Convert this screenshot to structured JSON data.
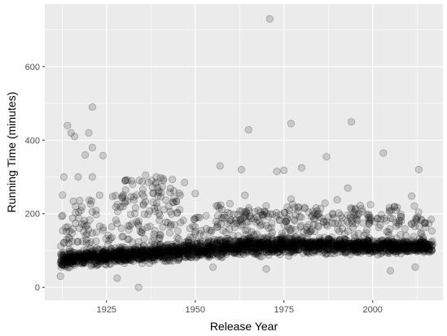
{
  "chart_data": {
    "type": "scatter",
    "title": "",
    "xlabel": "Release Year",
    "ylabel": "Running Time (minutes)",
    "xlim": [
      1907.6,
      2019.8
    ],
    "ylim": [
      -35,
      770
    ],
    "x_ticks": [
      1925,
      1950,
      1975,
      2000
    ],
    "y_ticks": [
      0,
      200,
      400,
      600
    ],
    "grid": true,
    "legend": "none",
    "point_color": "#000000",
    "point_opacity": 0.15,
    "panel_background": "#ebebeb",
    "trend_band": [
      {
        "year": 1912,
        "low": 40,
        "high": 110
      },
      {
        "year": 1925,
        "low": 55,
        "high": 115
      },
      {
        "year": 1940,
        "low": 60,
        "high": 125
      },
      {
        "year": 1955,
        "low": 70,
        "high": 140
      },
      {
        "year": 1965,
        "low": 78,
        "high": 150
      },
      {
        "year": 1980,
        "low": 82,
        "high": 145
      },
      {
        "year": 2000,
        "low": 85,
        "high": 140
      },
      {
        "year": 2017,
        "low": 85,
        "high": 135
      }
    ],
    "outliers": [
      {
        "x": 1971,
        "y": 730
      },
      {
        "x": 1921,
        "y": 490
      },
      {
        "x": 1994,
        "y": 450
      },
      {
        "x": 1977,
        "y": 445
      },
      {
        "x": 1914,
        "y": 440
      },
      {
        "x": 1965,
        "y": 428
      },
      {
        "x": 1915,
        "y": 420
      },
      {
        "x": 1920,
        "y": 420
      },
      {
        "x": 1916,
        "y": 410
      },
      {
        "x": 1921,
        "y": 380
      },
      {
        "x": 2003,
        "y": 365
      },
      {
        "x": 1919,
        "y": 360
      },
      {
        "x": 1924,
        "y": 358
      },
      {
        "x": 1987,
        "y": 355
      },
      {
        "x": 1957,
        "y": 330
      },
      {
        "x": 1980,
        "y": 325
      },
      {
        "x": 1963,
        "y": 320
      },
      {
        "x": 2013,
        "y": 320
      },
      {
        "x": 1975,
        "y": 318
      },
      {
        "x": 1973,
        "y": 315
      },
      {
        "x": 1913,
        "y": 300
      },
      {
        "x": 1917,
        "y": 300
      },
      {
        "x": 1921,
        "y": 300
      },
      {
        "x": 1936,
        "y": 305
      },
      {
        "x": 1939,
        "y": 300
      },
      {
        "x": 1941,
        "y": 295
      },
      {
        "x": 1947,
        "y": 285
      },
      {
        "x": 1993,
        "y": 270
      },
      {
        "x": 1950,
        "y": 255
      },
      {
        "x": 1964,
        "y": 250
      },
      {
        "x": 2011,
        "y": 248
      },
      {
        "x": 1977,
        "y": 240
      },
      {
        "x": 1990,
        "y": 238
      },
      {
        "x": 1934,
        "y": 0
      },
      {
        "x": 1928,
        "y": 25
      },
      {
        "x": 1912,
        "y": 30
      },
      {
        "x": 1955,
        "y": 55
      },
      {
        "x": 1970,
        "y": 50
      },
      {
        "x": 2005,
        "y": 45
      },
      {
        "x": 2012,
        "y": 55
      }
    ],
    "clusters": [
      {
        "x_range": [
          1930,
          1946
        ],
        "y_range": [
          190,
          300
        ],
        "count": 70
      },
      {
        "x_range": [
          1912,
          1930
        ],
        "y_range": [
          160,
          260
        ],
        "count": 40
      },
      {
        "x_range": [
          1955,
          1970
        ],
        "y_range": [
          170,
          230
        ],
        "count": 40
      },
      {
        "x_range": [
          1975,
          2015
        ],
        "y_range": [
          150,
          230
        ],
        "count": 80
      }
    ]
  }
}
